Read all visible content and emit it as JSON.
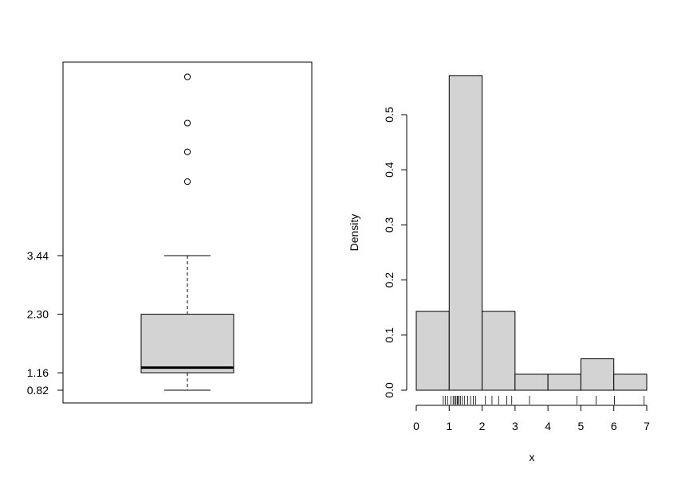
{
  "colors": {
    "fill": "#d3d3d3",
    "stroke": "#000000",
    "background": "#ffffff"
  },
  "chart_data": [
    {
      "type": "boxplot",
      "title": "",
      "xlabel": "",
      "ylabel": "",
      "ylim": [
        0.82,
        6.4
      ],
      "yticks": [
        0.82,
        1.16,
        2.3,
        3.44
      ],
      "ytick_labels": [
        "0.82",
        "1.16",
        "2.30",
        "3.44"
      ],
      "stats": {
        "whisker_low": 0.82,
        "q1": 1.16,
        "median": 1.26,
        "q3": 2.3,
        "whisker_high": 3.44,
        "outliers": [
          4.88,
          5.46,
          6.02,
          6.92
        ]
      }
    },
    {
      "type": "histogram",
      "title": "",
      "xlabel": "x",
      "ylabel": "Density",
      "xlim": [
        0,
        7
      ],
      "ylim": [
        0,
        0.57
      ],
      "xticks": [
        0,
        1,
        2,
        3,
        4,
        5,
        6,
        7
      ],
      "xtick_labels": [
        "0",
        "1",
        "2",
        "3",
        "4",
        "5",
        "6",
        "7"
      ],
      "yticks": [
        0.0,
        0.1,
        0.2,
        0.3,
        0.4,
        0.5
      ],
      "ytick_labels": [
        "0.0",
        "0.1",
        "0.2",
        "0.3",
        "0.4",
        "0.5"
      ],
      "bins": [
        {
          "x0": 0,
          "x1": 1,
          "density": 0.143
        },
        {
          "x0": 1,
          "x1": 2,
          "density": 0.571
        },
        {
          "x0": 2,
          "x1": 3,
          "density": 0.143
        },
        {
          "x0": 3,
          "x1": 4,
          "density": 0.029
        },
        {
          "x0": 4,
          "x1": 5,
          "density": 0.029
        },
        {
          "x0": 5,
          "x1": 6,
          "density": 0.057
        },
        {
          "x0": 6,
          "x1": 7,
          "density": 0.029
        }
      ],
      "rug": [
        0.82,
        0.88,
        0.95,
        1.05,
        1.12,
        1.16,
        1.2,
        1.24,
        1.26,
        1.3,
        1.34,
        1.4,
        1.47,
        1.56,
        1.65,
        1.73,
        1.8,
        2.1,
        2.3,
        2.5,
        2.75,
        2.9,
        3.44,
        4.88,
        5.46,
        6.02,
        6.92
      ]
    }
  ]
}
